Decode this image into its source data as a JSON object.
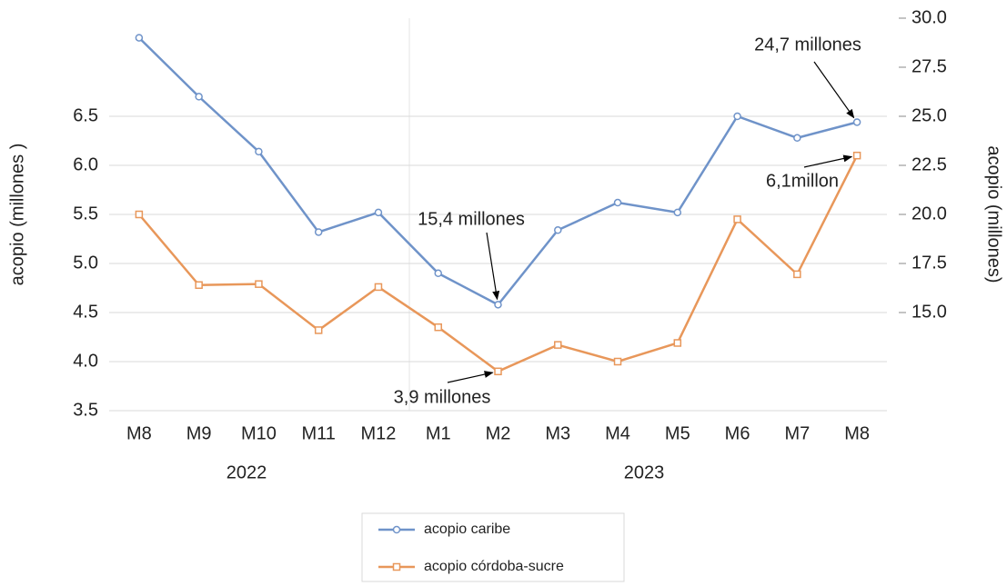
{
  "chart_data": {
    "type": "line",
    "y_label": "acopio (millones )",
    "y2_label": "acopio (millones)",
    "categories": [
      "M8",
      "M9",
      "M10",
      "M11",
      "M12",
      "M1",
      "M2",
      "M3",
      "M4",
      "M5",
      "M6",
      "M7",
      "M8"
    ],
    "year_labels": [
      "2022",
      "2023"
    ],
    "series": [
      {
        "name": "acopio caribe",
        "color": "#6f93c9",
        "axis": "y2",
        "marker": "circle",
        "values": [
          29.0,
          26.0,
          23.2,
          19.1,
          20.1,
          17.0,
          15.4,
          19.2,
          20.6,
          20.1,
          25.0,
          23.9,
          24.7
        ]
      },
      {
        "name": "acopio córdoba-sucre",
        "color": "#e8975a",
        "axis": "y",
        "marker": "square",
        "values": [
          5.5,
          4.78,
          4.79,
          4.32,
          4.76,
          4.35,
          3.9,
          4.17,
          4.0,
          4.19,
          5.45,
          4.89,
          6.1
        ]
      }
    ],
    "ylim": [
      3.5,
      7.5
    ],
    "yticks": [
      3.5,
      {
        "value": 4,
        "label": "4.0"
      },
      4.5,
      {
        "value": 5,
        "label": "5.0"
      },
      5.5,
      {
        "value": 6,
        "label": "6.0"
      },
      6.5
    ],
    "y2lim": [
      10,
      30
    ],
    "y2ticks": [
      {
        "value": 15,
        "label": "15.0"
      },
      17.5,
      {
        "value": 20,
        "label": "20.0"
      },
      22.5,
      {
        "value": 25,
        "label": "25.0"
      },
      27.5,
      {
        "value": 30,
        "label": "30.0"
      }
    ],
    "grid": true,
    "legend": "bottom",
    "annotations": [
      "24,7 millones",
      "6,1millon",
      "15,4 millones",
      "3,9 millones"
    ]
  }
}
